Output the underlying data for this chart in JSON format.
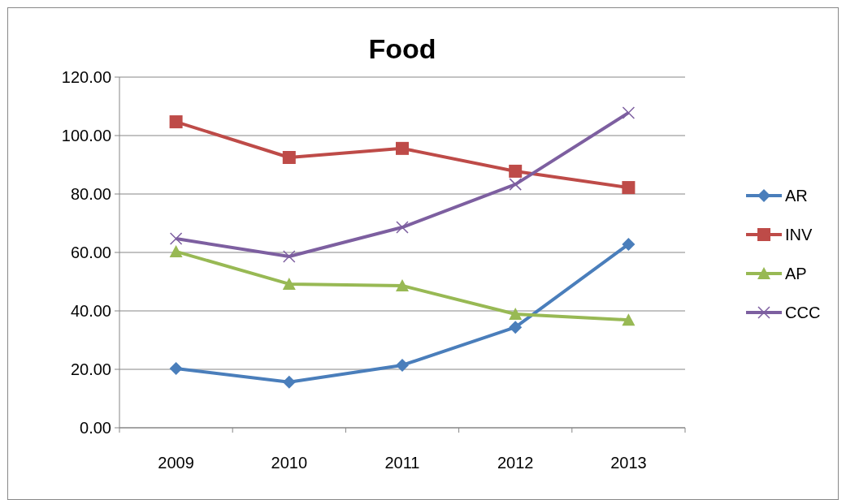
{
  "chart_data": {
    "type": "line",
    "title": "Food",
    "categories": [
      "2009",
      "2010",
      "2011",
      "2012",
      "2013"
    ],
    "series": [
      {
        "name": "AR",
        "color": "#4a7ebb",
        "marker": "diamond",
        "values": [
          20.3,
          15.6,
          21.4,
          34.4,
          62.8
        ]
      },
      {
        "name": "INV",
        "color": "#be4b48",
        "marker": "square",
        "values": [
          104.7,
          92.5,
          95.6,
          87.8,
          82.2
        ]
      },
      {
        "name": "AP",
        "color": "#98b954",
        "marker": "triangle",
        "values": [
          60.3,
          49.2,
          48.6,
          38.9,
          36.9
        ]
      },
      {
        "name": "CCC",
        "color": "#7d5fa0",
        "marker": "cross",
        "values": [
          64.7,
          58.6,
          68.6,
          83.3,
          107.8
        ]
      }
    ],
    "ylim": [
      0,
      120
    ],
    "yticks": [
      {
        "value": 0,
        "label": "0.00"
      },
      {
        "value": 20,
        "label": "20.00"
      },
      {
        "value": 40,
        "label": "40.00"
      },
      {
        "value": 60,
        "label": "60.00"
      },
      {
        "value": 80,
        "label": "80.00"
      },
      {
        "value": 100,
        "label": "100.00"
      },
      {
        "value": 120,
        "label": "120.00"
      }
    ],
    "grid": "y",
    "legend": "right",
    "line_style": "solid"
  }
}
